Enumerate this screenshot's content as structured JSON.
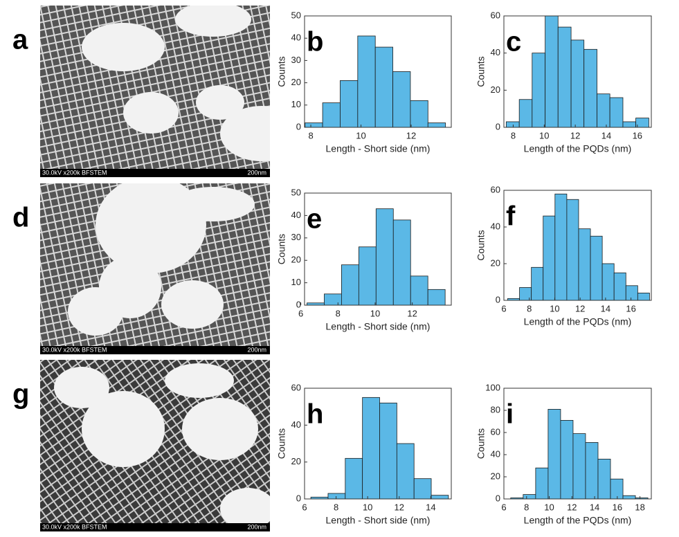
{
  "chart_data": [
    {
      "type": "histogram",
      "panel": "b",
      "xlabel": "Length - Short side (nm)",
      "ylabel": "Counts",
      "color": "#5bb8e6",
      "bins": [
        7.77,
        8.47,
        9.17,
        9.87,
        10.57,
        11.27,
        11.97,
        12.67,
        13.37
      ],
      "values": [
        2,
        11,
        21,
        41,
        36,
        25,
        12,
        2
      ],
      "xlim": [
        7.75,
        13.6
      ],
      "xticks": [
        8,
        10,
        12
      ],
      "ylim": [
        0,
        50
      ],
      "yticks": [
        0,
        10,
        20,
        30,
        40,
        50
      ]
    },
    {
      "type": "histogram",
      "panel": "c",
      "xlabel": "Length of the PQDs (nm)",
      "ylabel": "Counts",
      "color": "#5bb8e6",
      "bins": [
        7.55,
        8.39,
        9.22,
        10.06,
        10.89,
        11.73,
        12.56,
        13.4,
        14.23,
        15.07,
        15.9,
        16.74
      ],
      "values": [
        3,
        15,
        40,
        60,
        54,
        47,
        42,
        18,
        16,
        3,
        5
      ],
      "xlim": [
        7.4,
        16.9
      ],
      "xticks": [
        8,
        10,
        12,
        14,
        16
      ],
      "ylim": [
        0,
        60
      ],
      "yticks": [
        0,
        20,
        40,
        60
      ]
    },
    {
      "type": "histogram",
      "panel": "e",
      "xlabel": "Length - Short side (nm)",
      "ylabel": "Counts",
      "color": "#5bb8e6",
      "bins": [
        6.33,
        7.26,
        8.19,
        9.12,
        10.05,
        10.98,
        11.91,
        12.84,
        13.77
      ],
      "values": [
        1,
        5,
        18,
        26,
        43,
        38,
        13,
        7
      ],
      "xlim": [
        6.2,
        14.1
      ],
      "xticks": [
        6,
        8,
        10,
        12
      ],
      "ylim": [
        0,
        50
      ],
      "yticks": [
        0,
        10,
        20,
        30,
        40,
        50
      ]
    },
    {
      "type": "histogram",
      "panel": "f",
      "xlabel": "Length of the PQDs (nm)",
      "ylabel": "Counts",
      "color": "#5bb8e6",
      "bins": [
        6.3,
        7.23,
        8.16,
        9.09,
        10.02,
        10.95,
        11.88,
        12.81,
        13.74,
        14.67,
        15.6,
        16.53,
        17.46
      ],
      "values": [
        1,
        7,
        18,
        46,
        58,
        55,
        39,
        35,
        20,
        15,
        8,
        4
      ],
      "xlim": [
        6,
        17.6
      ],
      "xticks": [
        6,
        8,
        10,
        12,
        14,
        16
      ],
      "ylim": [
        0,
        60
      ],
      "yticks": [
        0,
        20,
        40,
        60
      ]
    },
    {
      "type": "histogram",
      "panel": "h",
      "xlabel": "Length - Short side (nm)",
      "ylabel": "Counts",
      "color": "#5bb8e6",
      "bins": [
        6.4,
        7.49,
        8.58,
        9.67,
        10.76,
        11.85,
        12.94,
        14.03,
        15.12
      ],
      "values": [
        1,
        3,
        22,
        55,
        52,
        30,
        11,
        2
      ],
      "xlim": [
        6,
        15.3
      ],
      "xticks": [
        6,
        8,
        10,
        12,
        14
      ],
      "ylim": [
        0,
        60
      ],
      "yticks": [
        0,
        20,
        40,
        60
      ]
    },
    {
      "type": "histogram",
      "panel": "i",
      "xlabel": "Length of the PQDs (nm)",
      "ylabel": "Counts",
      "color": "#5bb8e6",
      "bins": [
        6.6,
        7.7,
        8.8,
        9.9,
        11,
        12.1,
        13.2,
        14.3,
        15.4,
        16.5,
        17.6,
        18.7
      ],
      "values": [
        1,
        4,
        28,
        81,
        71,
        59,
        51,
        36,
        18,
        3,
        1
      ],
      "xlim": [
        6,
        19
      ],
      "xticks": [
        6,
        8,
        10,
        12,
        14,
        16,
        18
      ],
      "ylim": [
        0,
        100
      ],
      "yticks": [
        0,
        20,
        40,
        60,
        80,
        100
      ]
    }
  ],
  "images": [
    {
      "panel": "a",
      "caption": "30.0kV x200k BFSTEM",
      "scale": "200nm"
    },
    {
      "panel": "d",
      "caption": "30.0kV x200k BFSTEM",
      "scale": "200nm"
    },
    {
      "panel": "g",
      "caption": "30.0kV x200k BFSTEM",
      "scale": "200nm"
    }
  ]
}
